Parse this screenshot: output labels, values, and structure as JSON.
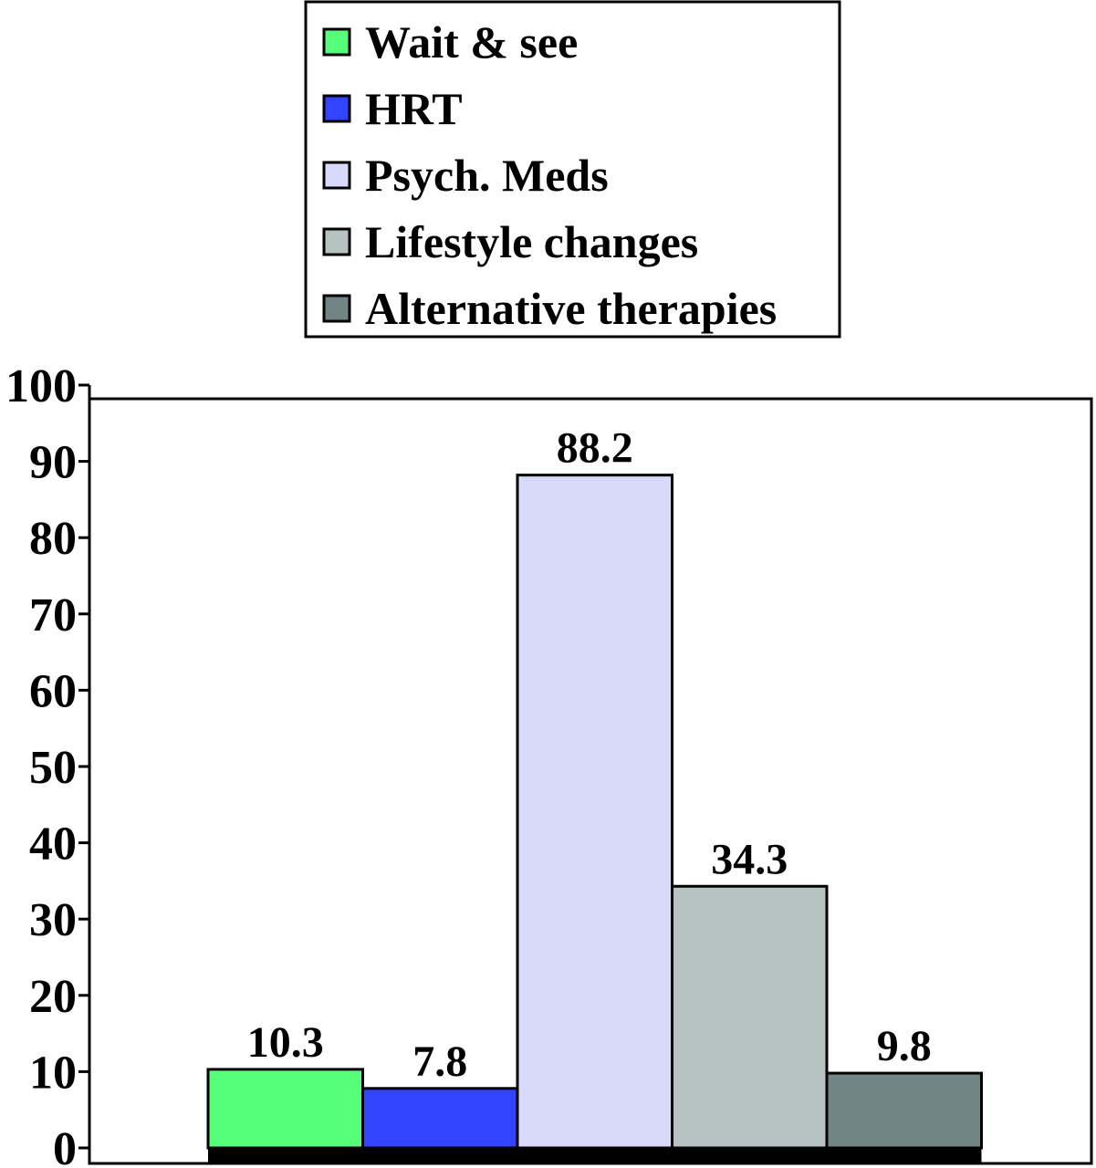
{
  "chart_data": {
    "type": "bar",
    "categories": [
      "Wait & see",
      "HRT",
      "Psych. Meds",
      "Lifestyle changes",
      "Alternative therapies"
    ],
    "values": [
      10.3,
      7.8,
      88.2,
      34.3,
      9.8
    ],
    "data_labels": [
      "10.3",
      "7.8",
      "88.2",
      "34.3",
      "9.8"
    ],
    "colors": [
      "#55ff77",
      "#3344ff",
      "#d9d9fb",
      "#b7c3c1",
      "#718584"
    ],
    "legend": {
      "placement": "top-center",
      "entries": [
        "Wait & see",
        "HRT",
        "Psych. Meds",
        "Lifestyle changes",
        "Alternative therapies"
      ]
    },
    "ylim": [
      0,
      100
    ],
    "yticks": [
      0,
      10,
      20,
      30,
      40,
      50,
      60,
      70,
      80,
      90,
      100
    ],
    "ytick_labels": [
      "0",
      "10",
      "20",
      "30",
      "40",
      "50",
      "60",
      "70",
      "80",
      "90",
      "100"
    ],
    "grid": false,
    "title": "",
    "xlabel": "",
    "ylabel": ""
  }
}
